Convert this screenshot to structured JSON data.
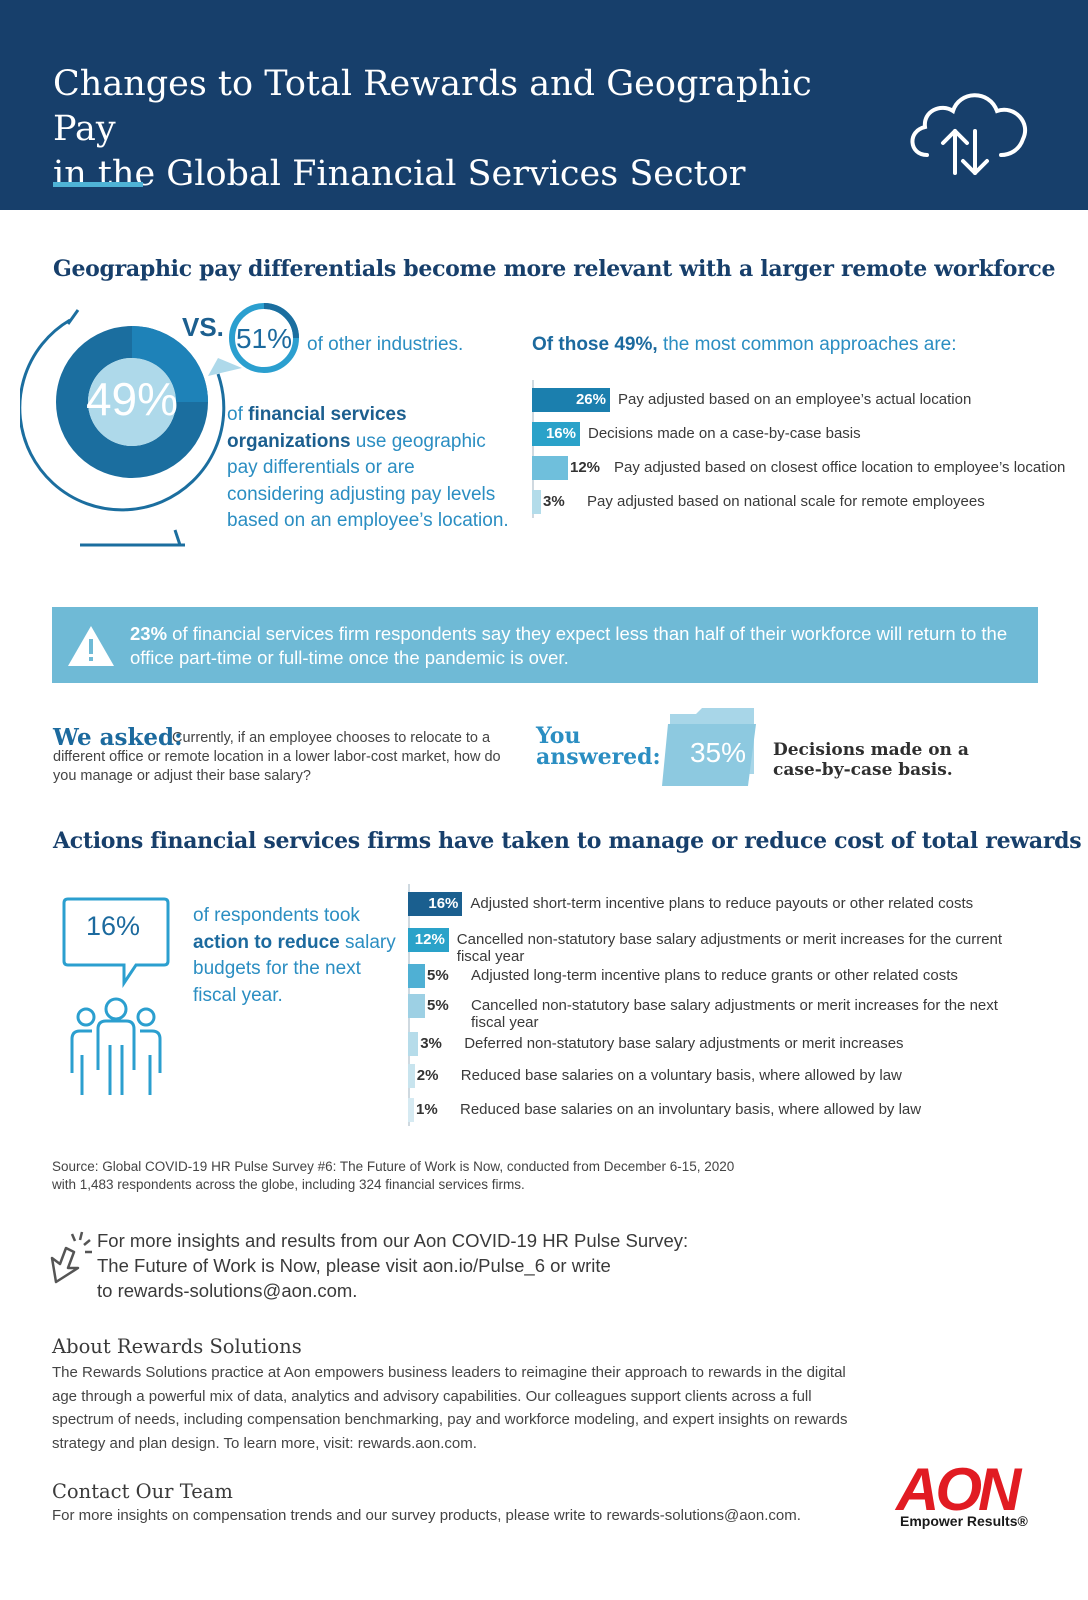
{
  "header": {
    "title_line1": "Changes to Total Rewards and Geographic Pay",
    "title_line2": "in the Global Financial Services Sector"
  },
  "section1": {
    "heading": "Geographic pay differentials become more relevant with a larger remote workforce",
    "main_pct": "49%",
    "vs_label": "VS.",
    "other_pct": "51%",
    "other_text": "of other industries.",
    "desc_prefix": "of",
    "desc_bold": "financial services organizations",
    "desc_rest": "use geographic pay differentials or are considering adjusting pay levels based on an employee’s location.",
    "approaches_bold": "Of those 49%,",
    "approaches_rest": "the most common approaches are:"
  },
  "alert": {
    "bold": "23%",
    "text": "of financial services firm respondents say they expect less than half of their workforce will return to the office part-time or full-time once the pandemic is over."
  },
  "asked": {
    "label": "We asked:",
    "text": "Currently, if an employee chooses to relocate to a different office or remote location in a lower labor-cost market, how do you manage or adjust their base salary?",
    "answered_label": "You answered:",
    "answer_pct": "35%",
    "answer_text": "Decisions made on a case-by-case basis."
  },
  "section2": {
    "heading": "Actions financial services firms have taken to manage or reduce cost of total rewards",
    "bubble_pct": "16%",
    "desc_pre": "of respondents took",
    "desc_bold": "action to reduce",
    "desc_post": "salary budgets for the next fiscal year."
  },
  "chart_data": [
    {
      "type": "bar",
      "orientation": "horizontal",
      "title": "Of those 49%, the most common approaches are:",
      "unit": "%",
      "categories": [
        "Pay adjusted based on an employee’s actual location",
        "Decisions made on a case-by-case basis",
        "Pay adjusted based on closest office location to employee’s location",
        "Pay adjusted based on national scale for remote employees"
      ],
      "values": [
        26,
        16,
        12,
        3
      ],
      "value_labels": [
        "26%",
        "16%",
        "12%",
        "3%"
      ],
      "colors": [
        "#1b7fae",
        "#2aa2c9",
        "#6fbfdc",
        "#b3dcea"
      ]
    },
    {
      "type": "bar",
      "orientation": "horizontal",
      "title": "",
      "unit": "%",
      "categories": [
        "Adjusted short-term incentive plans to reduce payouts or other related costs",
        "Cancelled non-statutory base salary adjustments or merit increases for the current fiscal year",
        "Adjusted long-term incentive plans to reduce grants or other related costs",
        "Cancelled non-statutory base salary adjustments or merit increases for the next fiscal year",
        "Deferred non-statutory base salary adjustments or merit increases",
        "Reduced base salaries on a voluntary basis, where allowed by law",
        "Reduced base salaries on an involuntary basis, where allowed by law"
      ],
      "values": [
        16,
        12,
        5,
        5,
        3,
        2,
        1
      ],
      "value_labels": [
        "16%",
        "12%",
        "5%",
        "5%",
        "3%",
        "2%",
        "1%"
      ],
      "colors": [
        "#1a5f8f",
        "#2aa2c9",
        "#4fb0d4",
        "#9dd0e4",
        "#b6dcea",
        "#c8e4ee",
        "#d6eaf2"
      ]
    }
  ],
  "source": {
    "line1": "Source: Global COVID-19 HR Pulse Survey #6: The Future of Work is Now, conducted from December 6-15, 2020",
    "line2": "with 1,483 respondents across the globe, including 324 financial services firms."
  },
  "more": {
    "line1": "For more insights and results from our Aon COVID-19 HR Pulse Survey:",
    "line2": "The Future of Work is Now, please visit aon.io/Pulse_6 or write",
    "line3": "to rewards-solutions@aon.com."
  },
  "about": {
    "title": "About Rewards Solutions",
    "body": "The Rewards Solutions practice at Aon empowers business leaders to reimagine their approach to rewards in the digital age through a powerful mix of data, analytics and advisory capabilities. Our colleagues support clients across a full spectrum of needs, including compensation benchmarking, pay and workforce modeling, and expert insights on rewards strategy and plan design. To learn more, visit: rewards.aon.com."
  },
  "contact": {
    "title": "Contact Our Team",
    "body": "For more insights on compensation trends and our survey products, please write to rewards-solutions@aon.com."
  },
  "brand": {
    "logo": "AON",
    "tagline": "Empower Results®",
    "red": "#e11b22",
    "navy": "#173f6b",
    "teal": "#2aa2c9"
  },
  "icons": [
    "cloud-upload-download-icon",
    "warning-icon",
    "folder-icon",
    "speech-bubble-icon",
    "people-icon",
    "cursor-click-icon"
  ]
}
